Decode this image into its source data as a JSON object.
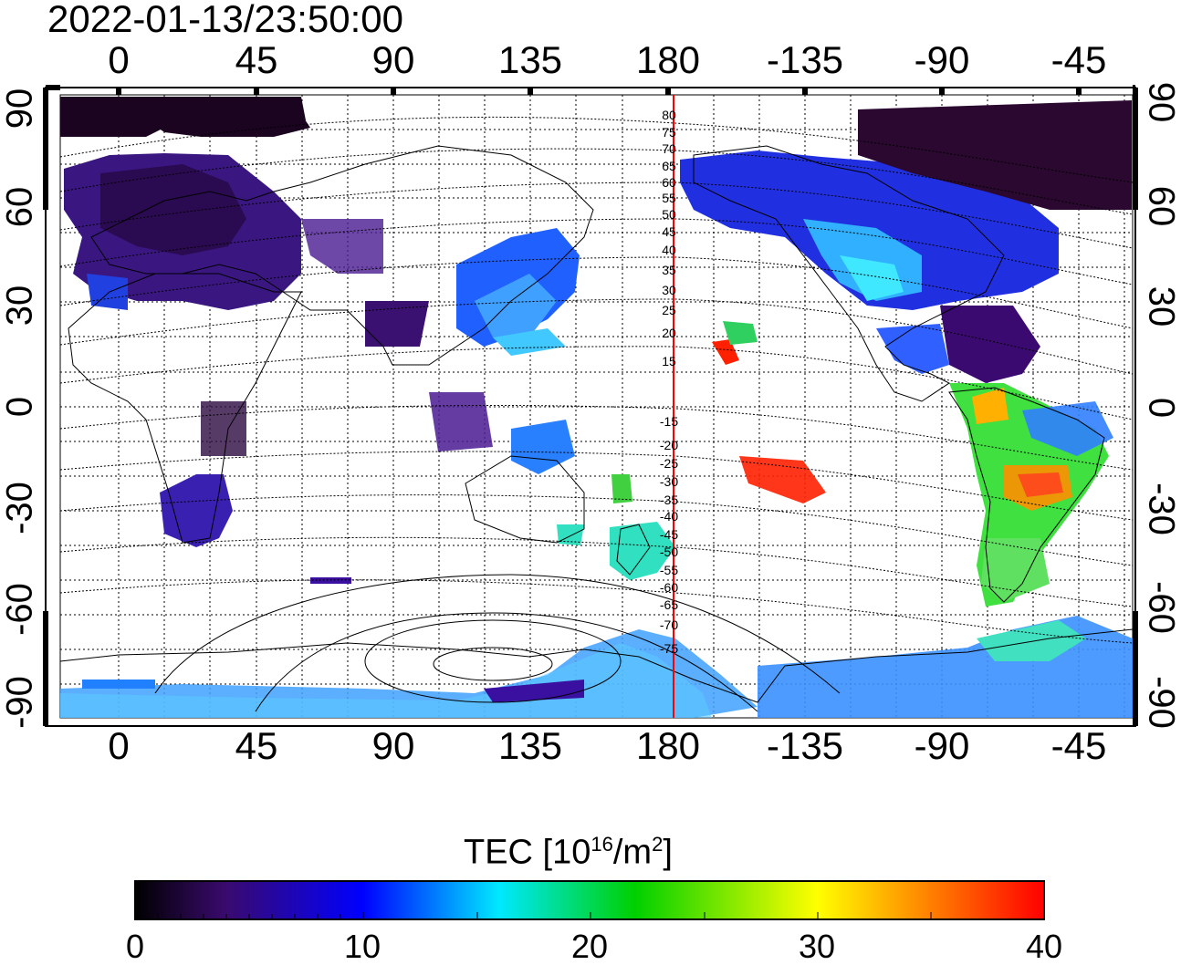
{
  "title": "2022-01-13/23:50:00",
  "map": {
    "lon_ticks_top": [
      "0",
      "45",
      "90",
      "135",
      "180",
      "-135",
      "-90",
      "-45"
    ],
    "lon_ticks_bottom": [
      "0",
      "45",
      "90",
      "135",
      "180",
      "-135",
      "-90",
      "-45"
    ],
    "lat_ticks_left": [
      "90",
      "60",
      "30",
      "0",
      "-30",
      "-60",
      "-90"
    ],
    "lat_ticks_right": [
      "90",
      "60",
      "30",
      "0",
      "-30",
      "-60",
      "-90"
    ],
    "contour_labels": [
      "80",
      "75",
      "70",
      "65",
      "60",
      "55",
      "50",
      "45",
      "40",
      "35",
      "30",
      "25",
      "20",
      "15",
      "-15",
      "-20",
      "-25",
      "-30",
      "-35",
      "-40",
      "-45",
      "-50",
      "-55",
      "-60",
      "-65",
      "-70",
      "-75"
    ],
    "meridian_color": "#ff0000"
  },
  "colorbar": {
    "label_main": "TEC  [10",
    "label_exp": "16",
    "label_unit": "/m",
    "label_unit_exp": "2",
    "label_close": "]",
    "ticks": [
      "0",
      "10",
      "20",
      "30",
      "40"
    ],
    "colors": [
      "#000000",
      "#3a0a6e",
      "#0000ff",
      "#00e8ff",
      "#00d000",
      "#ffff00",
      "#ff0000"
    ]
  }
}
